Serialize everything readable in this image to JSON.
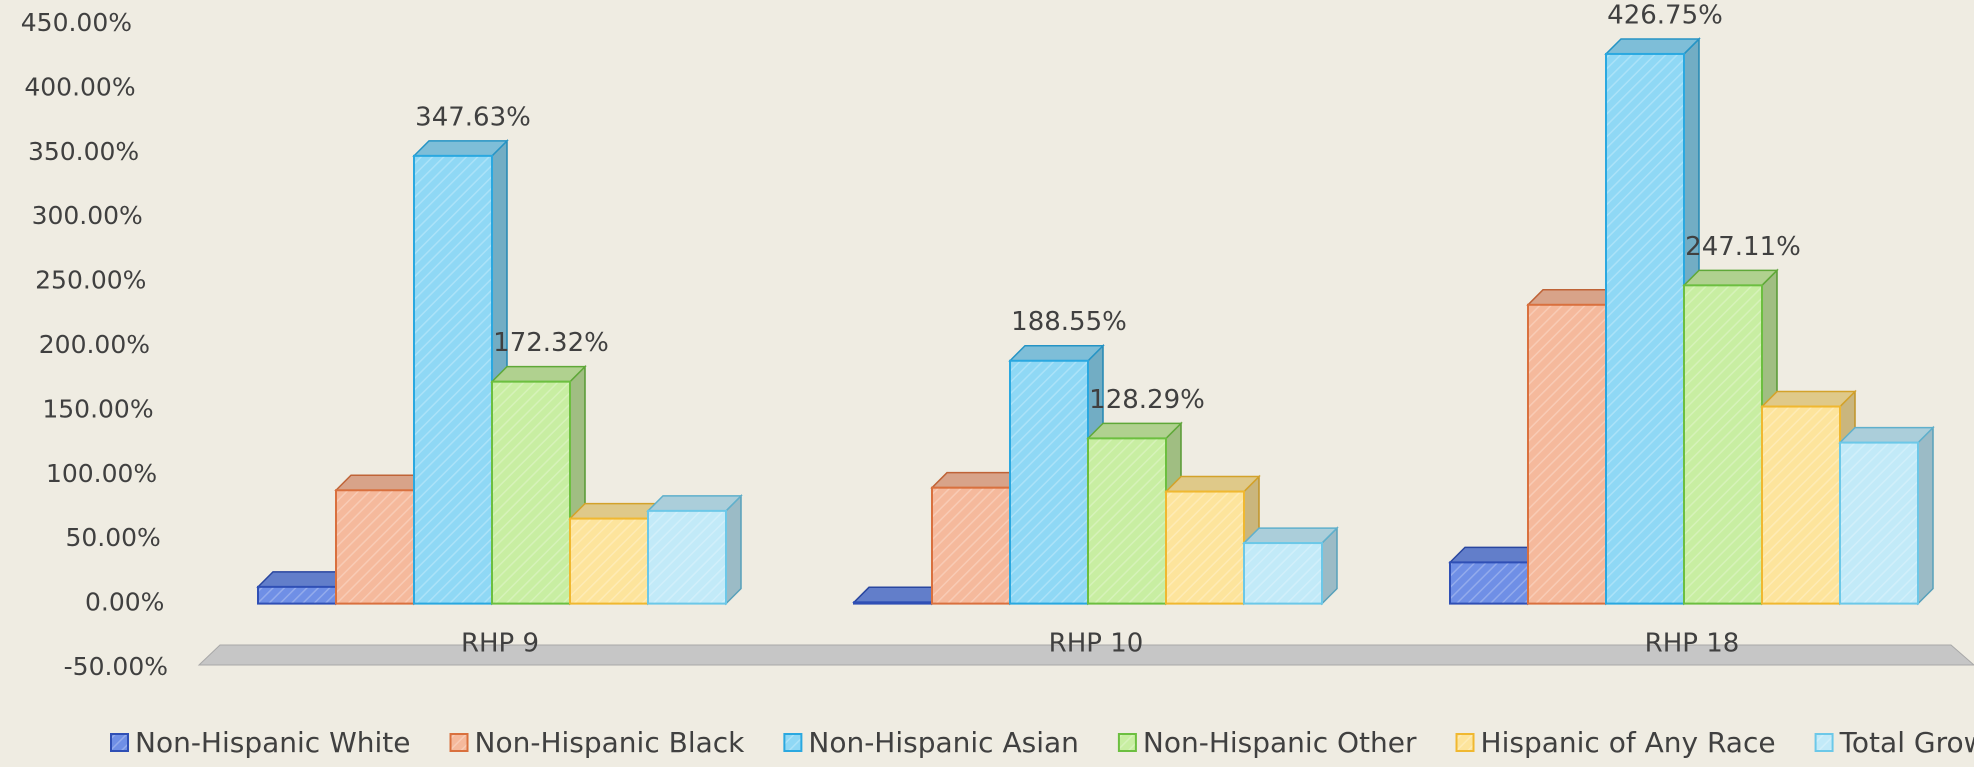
{
  "chart_data": {
    "type": "bar3d",
    "categories": [
      "RHP 9",
      "RHP 10",
      "RHP 18"
    ],
    "series": [
      {
        "name": "Non-Hispanic White",
        "color": "#6f8fe6",
        "edge": "#2f4fb5",
        "values": [
          13,
          1,
          32
        ],
        "value_labels": [
          null,
          null,
          null
        ]
      },
      {
        "name": "Non-Hispanic Black",
        "color": "#f5b99c",
        "edge": "#d9703e",
        "values": [
          88,
          90,
          232
        ],
        "value_labels": [
          null,
          null,
          null
        ]
      },
      {
        "name": "Non-Hispanic Asian",
        "color": "#8fd8f5",
        "edge": "#2aa8e0",
        "values": [
          347.63,
          188.55,
          426.75
        ],
        "value_labels": [
          "347.63%",
          "188.55%",
          "426.75%"
        ]
      },
      {
        "name": "Non-Hispanic Other",
        "color": "#c8eea2",
        "edge": "#6cbf40",
        "values": [
          172.32,
          128.29,
          247.11
        ],
        "value_labels": [
          "172.32%",
          "128.29%",
          "247.11%"
        ]
      },
      {
        "name": "Hispanic of Any Race",
        "color": "#fde49c",
        "edge": "#f0b830",
        "values": [
          66,
          87,
          153
        ],
        "value_labels": [
          null,
          null,
          null
        ]
      },
      {
        "name": "Total Growth",
        "color": "#c2eaf8",
        "edge": "#6cc8e8",
        "values": [
          72,
          47,
          125
        ],
        "value_labels": [
          null,
          null,
          null
        ]
      }
    ],
    "ylim": [
      -50,
      450
    ],
    "yticks": [
      {
        "value": -50,
        "label": "-50.00%"
      },
      {
        "value": 0,
        "label": "0.00%"
      },
      {
        "value": 50,
        "label": "50.00%"
      },
      {
        "value": 100,
        "label": "100.00%"
      },
      {
        "value": 150,
        "label": "150.00%"
      },
      {
        "value": 200,
        "label": "200.00%"
      },
      {
        "value": 250,
        "label": "250.00%"
      },
      {
        "value": 300,
        "label": "300.00%"
      },
      {
        "value": 350,
        "label": "350.00%"
      },
      {
        "value": 400,
        "label": "400.00%"
      },
      {
        "value": 450,
        "label": "450.00%"
      }
    ],
    "grid": false,
    "legend": "bottom"
  }
}
